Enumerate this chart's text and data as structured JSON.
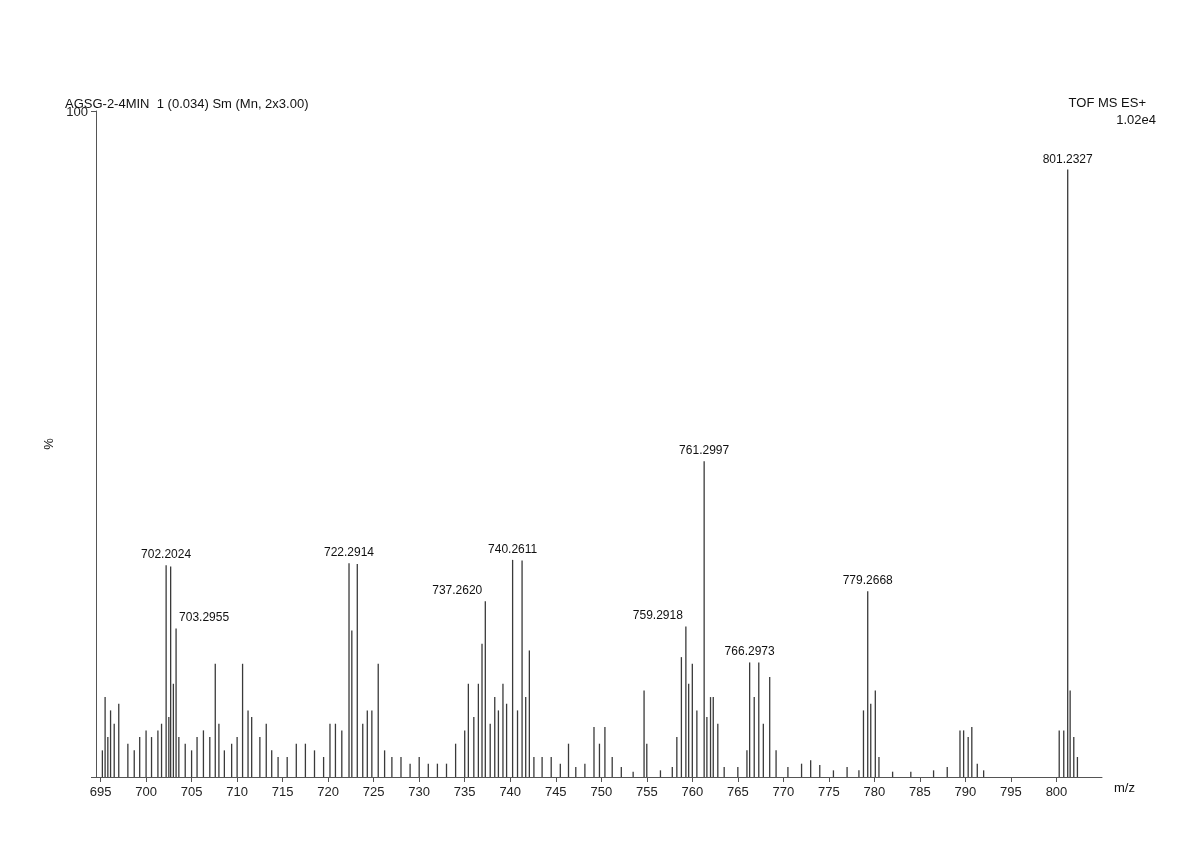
{
  "chart_data": {
    "type": "bar",
    "title": "AGSG-2-4MIN  1 (0.034) Sm (Mn, 2x3.00)",
    "xlabel": "m/z",
    "ylabel": "%",
    "annotations": [
      "TOF MS ES+",
      "1.02e4",
      {
        "text": "702.2024",
        "x": 702.2024,
        "y": 31.8
      },
      {
        "text": "703.2955",
        "x": 703.2955,
        "y": 22.3
      },
      {
        "text": "722.2914",
        "x": 722.2914,
        "y": 32.1
      },
      {
        "text": "737.2620",
        "x": 737.262,
        "y": 26.4
      },
      {
        "text": "740.2611",
        "x": 740.2611,
        "y": 32.6
      },
      {
        "text": "759.2918",
        "x": 759.2918,
        "y": 22.6
      },
      {
        "text": "761.2997",
        "x": 761.2997,
        "y": 47.4
      },
      {
        "text": "766.2973",
        "x": 766.2973,
        "y": 17.2
      },
      {
        "text": "779.2668",
        "x": 779.2668,
        "y": 27.9
      },
      {
        "text": "801.2327",
        "x": 801.2327,
        "y": 91.2
      }
    ],
    "color": "#3a3a3a",
    "x": [
      695.2,
      695.5,
      695.8,
      696.1,
      696.5,
      697.0,
      698.0,
      698.7,
      699.3,
      700.0,
      700.6,
      701.3,
      701.7,
      702.2024,
      702.5,
      702.7,
      703.0,
      703.2955,
      703.6,
      704.3,
      705.0,
      705.6,
      706.3,
      707.0,
      707.6,
      708.0,
      708.6,
      709.4,
      710.0,
      710.6,
      711.2,
      711.6,
      712.5,
      713.2,
      713.8,
      714.5,
      715.5,
      716.5,
      717.5,
      718.5,
      719.5,
      720.2,
      720.8,
      721.5,
      722.2914,
      722.6,
      723.2,
      723.8,
      724.3,
      724.8,
      725.5,
      726.2,
      727.0,
      728.0,
      729.0,
      730.0,
      731.0,
      732.0,
      733.0,
      734.0,
      735.0,
      735.4,
      736.0,
      736.5,
      736.9,
      737.262,
      737.8,
      738.3,
      738.7,
      739.2,
      739.6,
      740.2611,
      740.8,
      741.3,
      741.7,
      742.1,
      742.6,
      743.5,
      744.5,
      745.5,
      746.4,
      747.2,
      748.2,
      749.2,
      749.8,
      750.4,
      751.2,
      752.2,
      753.5,
      754.7,
      755.0,
      756.5,
      757.8,
      758.3,
      758.8,
      759.2918,
      759.6,
      760.0,
      760.5,
      761.2997,
      761.6,
      762.0,
      762.3,
      762.8,
      763.5,
      765.0,
      766.0,
      766.2973,
      766.8,
      767.3,
      767.8,
      768.5,
      769.2,
      770.5,
      772.0,
      773.0,
      774.0,
      775.5,
      777.0,
      778.3,
      778.8,
      779.2668,
      779.6,
      780.1,
      780.5,
      782.0,
      784.0,
      786.5,
      788.0,
      789.4,
      789.8,
      790.3,
      790.7,
      791.3,
      792.0,
      800.3,
      800.8,
      801.2327,
      801.5,
      801.9,
      802.3
    ],
    "values": [
      4,
      12,
      6,
      10,
      8,
      11,
      5,
      4,
      6,
      7,
      6,
      7,
      8,
      31.8,
      9,
      31.6,
      14,
      22.3,
      6,
      5,
      4,
      6,
      7,
      6,
      17,
      8,
      4,
      5,
      6,
      17,
      10,
      9,
      6,
      8,
      4,
      3,
      3,
      5,
      5,
      4,
      3,
      8,
      8,
      7,
      32.1,
      22,
      32,
      8,
      10,
      10,
      17,
      4,
      3,
      3,
      2,
      3,
      2,
      2,
      2,
      5,
      7,
      14,
      9,
      14,
      20,
      26.4,
      8,
      12,
      10,
      14,
      11,
      32.6,
      10,
      32.5,
      12,
      19,
      3,
      3,
      3,
      2,
      5,
      1.5,
      2,
      7.5,
      5,
      7.5,
      3,
      1.5,
      0.8,
      13,
      5,
      1,
      1.5,
      6,
      18,
      22.6,
      14,
      17,
      10,
      47.4,
      9,
      12,
      12,
      8,
      1.5,
      1.5,
      4,
      17.2,
      12,
      17.2,
      8,
      15,
      4,
      1.5,
      2,
      2.5,
      1.8,
      1,
      1.5,
      1,
      10,
      27.9,
      11,
      13,
      3,
      0.8,
      0.8,
      1,
      1.5,
      7,
      7,
      6,
      7.5,
      2,
      1,
      7,
      7,
      91.2,
      13,
      6,
      3
    ],
    "xlim": [
      694.5,
      805
    ],
    "xticks": [
      695,
      700,
      705,
      710,
      715,
      720,
      725,
      730,
      735,
      740,
      745,
      750,
      755,
      760,
      765,
      770,
      775,
      780,
      785,
      790,
      795,
      800
    ],
    "ylim": [
      0,
      100
    ],
    "yticks": [
      0,
      100
    ],
    "grid": false
  }
}
